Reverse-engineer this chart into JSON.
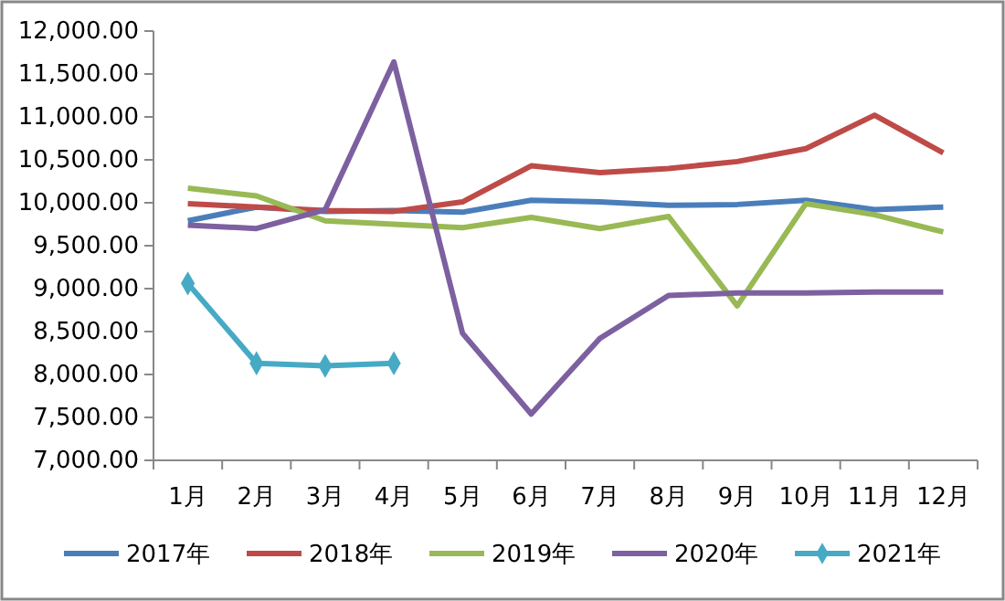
{
  "chart_data": {
    "type": "line",
    "categories": [
      "1月",
      "2月",
      "3月",
      "4月",
      "5月",
      "6月",
      "7月",
      "8月",
      "9月",
      "10月",
      "11月",
      "12月"
    ],
    "ylim": [
      7000,
      12000
    ],
    "yticks": [
      {
        "value": 7000,
        "label": "7,000.00"
      },
      {
        "value": 7500,
        "label": "7,500.00"
      },
      {
        "value": 8000,
        "label": "8,000.00"
      },
      {
        "value": 8500,
        "label": "8,500.00"
      },
      {
        "value": 9000,
        "label": "9,000.00"
      },
      {
        "value": 9500,
        "label": "9,500.00"
      },
      {
        "value": 10000,
        "label": "10,000.00"
      },
      {
        "value": 10500,
        "label": "10,500.00"
      },
      {
        "value": 11000,
        "label": "11,000.00"
      },
      {
        "value": 11500,
        "label": "11,500.00"
      },
      {
        "value": 12000,
        "label": "12,000.00"
      }
    ],
    "grid": false,
    "legend": "bottom",
    "marker": "none",
    "series": [
      {
        "name": "2017年",
        "color": "#4a7ebb",
        "values": [
          9790,
          9950,
          9900,
          9910,
          9890,
          10030,
          10010,
          9970,
          9980,
          10030,
          9920,
          9950
        ]
      },
      {
        "name": "2018年",
        "color": "#be4b48",
        "values": [
          9990,
          9950,
          9910,
          9900,
          10010,
          10430,
          10350,
          10400,
          10480,
          10630,
          11020,
          10580
        ]
      },
      {
        "name": "2019年",
        "color": "#98b954",
        "values": [
          10170,
          10080,
          9790,
          9750,
          9710,
          9830,
          9700,
          9840,
          8800,
          9990,
          9860,
          9660
        ]
      },
      {
        "name": "2020年",
        "color": "#7d60a0",
        "values": [
          9740,
          9700,
          9920,
          11640,
          8480,
          7540,
          8420,
          8920,
          8950,
          8950,
          8960,
          8960
        ]
      },
      {
        "name": "2021年",
        "color": "#46aac5",
        "marker": "diamond",
        "values": [
          9060,
          8130,
          8100,
          8130,
          null,
          null,
          null,
          null,
          null,
          null,
          null,
          null
        ]
      }
    ]
  }
}
